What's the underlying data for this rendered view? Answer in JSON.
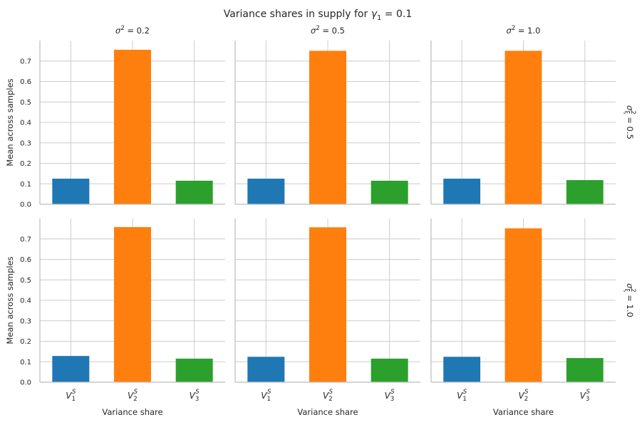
{
  "colors": {
    "grid": "#cccccc",
    "spine": "#bcbcbc",
    "text": "#262626",
    "bars": [
      "#1f77b4",
      "#ff7f0e",
      "#2ca02c"
    ]
  },
  "chart_data": {
    "type": "bar",
    "title": "Variance shares in supply for γ₁ = 0.1",
    "title_parts": {
      "pre": "Variance shares in supply for ",
      "var": "γ",
      "sub": "1",
      "post": " = 0.1"
    },
    "xlabel": "Variance share",
    "ylabel": "Mean across samples",
    "categories": [
      "V_1^S",
      "V_2^S",
      "V_3^S"
    ],
    "category_parts": [
      {
        "base": "V",
        "sub": "1",
        "sup": "S"
      },
      {
        "base": "V",
        "sub": "2",
        "sup": "S"
      },
      {
        "base": "V",
        "sub": "3",
        "sup": "S"
      }
    ],
    "ylim": [
      0,
      0.8
    ],
    "yticks": [
      "0.0",
      "0.1",
      "0.2",
      "0.3",
      "0.4",
      "0.5",
      "0.6",
      "0.7"
    ],
    "grid": true,
    "col_titles": [
      "σ² = 0.2",
      "σ² = 0.5",
      "σ² = 1.0"
    ],
    "col_title_parts": [
      {
        "var": "σ",
        "sup": "2",
        "post": " = 0.2"
      },
      {
        "var": "σ",
        "sup": "2",
        "post": " = 0.5"
      },
      {
        "var": "σ",
        "sup": "2",
        "post": " = 1.0"
      }
    ],
    "row_titles": [
      "σξ² = 0.5",
      "σξ² = 1.0"
    ],
    "row_title_parts": [
      {
        "var": "σ",
        "sub": "ξ",
        "sup": "2",
        "post": " = 0.5"
      },
      {
        "var": "σ",
        "sub": "ξ",
        "sup": "2",
        "post": " = 1.0"
      }
    ],
    "panels": [
      [
        {
          "values": [
            0.125,
            0.755,
            0.115
          ]
        },
        {
          "values": [
            0.125,
            0.75,
            0.115
          ]
        },
        {
          "values": [
            0.125,
            0.75,
            0.118
          ]
        }
      ],
      [
        {
          "values": [
            0.128,
            0.758,
            0.115
          ]
        },
        {
          "values": [
            0.124,
            0.757,
            0.115
          ]
        },
        {
          "values": [
            0.124,
            0.752,
            0.118
          ]
        }
      ]
    ]
  }
}
